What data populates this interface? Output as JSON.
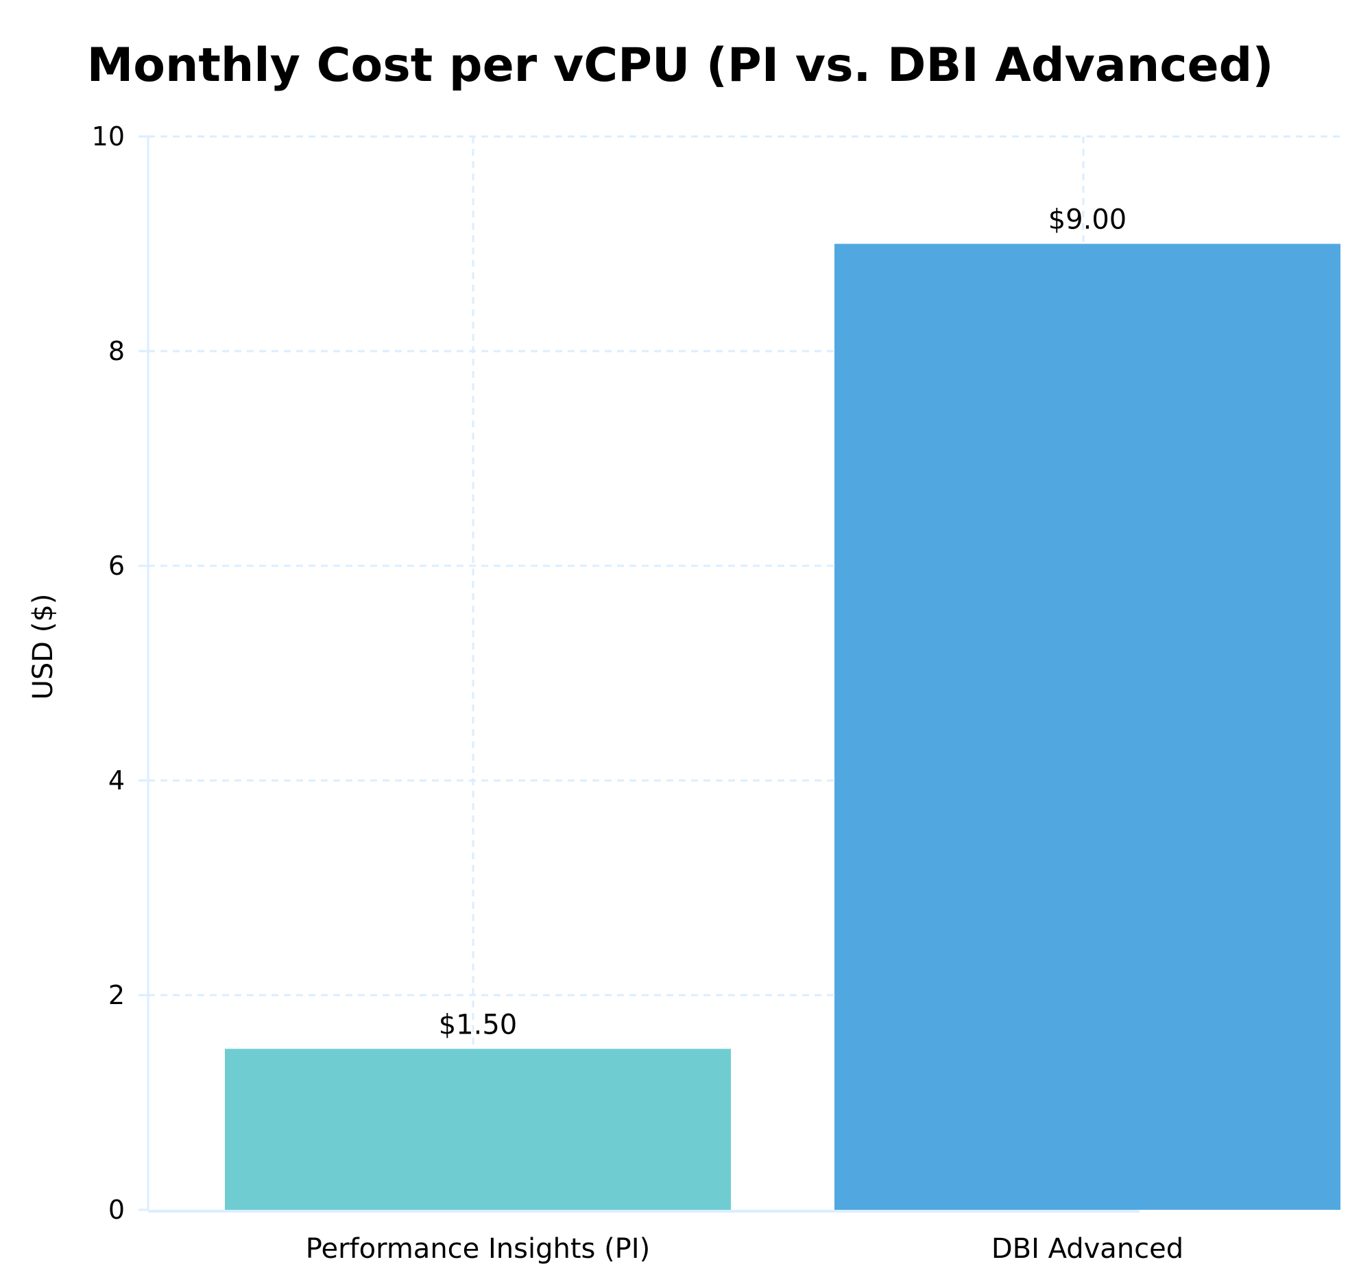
{
  "chart_data": {
    "type": "bar",
    "title": "Monthly Cost per vCPU (PI vs. DBI Advanced)",
    "xlabel": "",
    "ylabel": "USD ($)",
    "categories": [
      "Performance Insights (PI)",
      "DBI Advanced"
    ],
    "values": [
      1.5,
      9.0
    ],
    "data_labels": [
      "$1.50",
      "$9.00"
    ],
    "ylim": [
      0,
      10
    ],
    "yticks": [
      0,
      2,
      4,
      6,
      8,
      10
    ],
    "ytick_labels": [
      "0",
      "2",
      "4",
      "6",
      "8",
      "10"
    ],
    "grid": true,
    "colors": [
      "#6fcdd2",
      "#51a8e0"
    ]
  }
}
